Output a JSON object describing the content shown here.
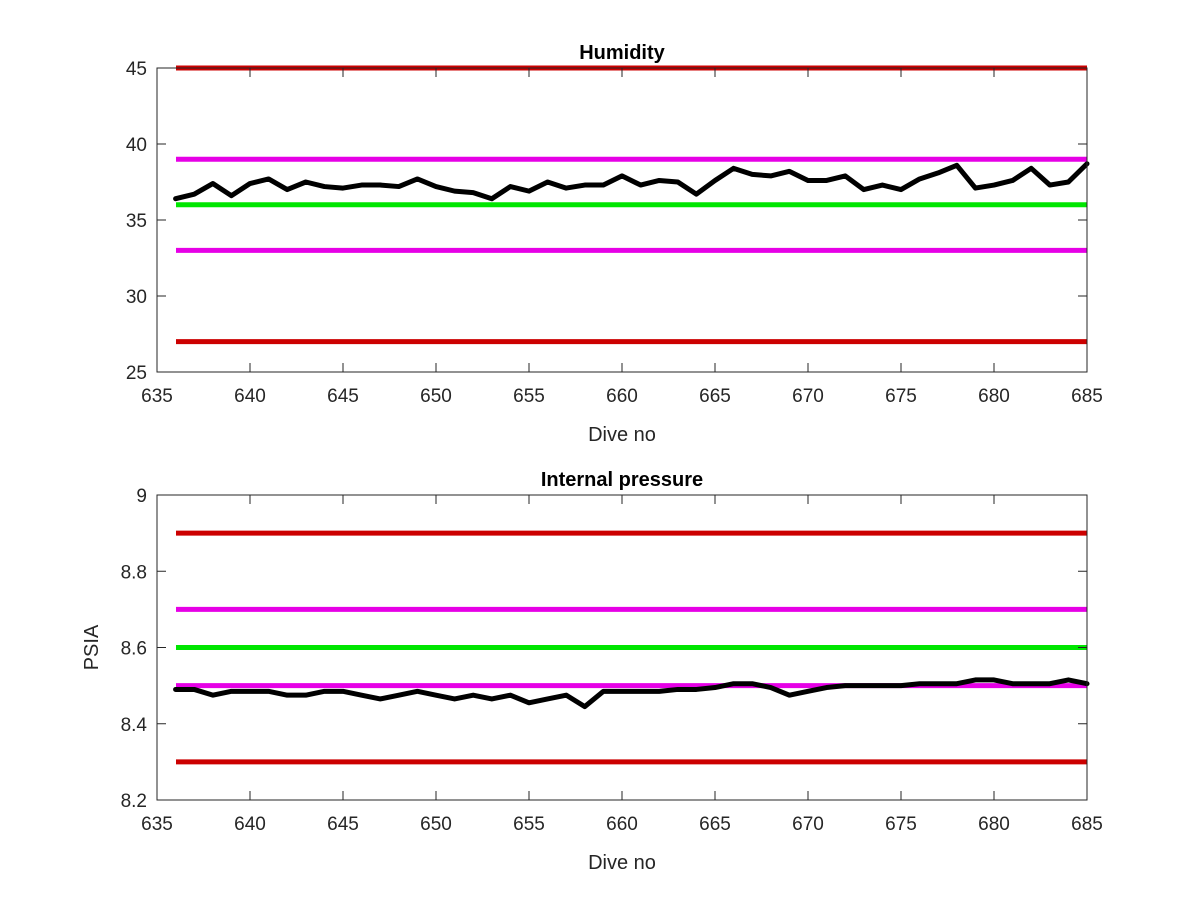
{
  "chart_data": [
    {
      "type": "line",
      "title": "Humidity",
      "xlabel": "Dive no",
      "ylabel": "",
      "xlim": [
        635,
        685
      ],
      "ylim": [
        25,
        45
      ],
      "xticks": [
        635,
        640,
        645,
        650,
        655,
        660,
        665,
        670,
        675,
        680,
        685
      ],
      "yticks": [
        25,
        30,
        35,
        40,
        45
      ],
      "grid": false,
      "reference_lines": [
        {
          "y": 45,
          "color": "#cc0000"
        },
        {
          "y": 39,
          "color": "#e600e6"
        },
        {
          "y": 36,
          "color": "#00e600"
        },
        {
          "y": 33,
          "color": "#e600e6"
        },
        {
          "y": 27,
          "color": "#cc0000"
        }
      ],
      "series": [
        {
          "color": "#000000",
          "x": [
            636,
            637,
            638,
            639,
            640,
            641,
            642,
            643,
            644,
            645,
            646,
            647,
            648,
            649,
            650,
            651,
            652,
            653,
            654,
            655,
            656,
            657,
            658,
            659,
            660,
            661,
            662,
            663,
            664,
            665,
            666,
            667,
            668,
            669,
            670,
            671,
            672,
            673,
            674,
            675,
            676,
            677,
            678,
            679,
            680,
            681,
            682,
            683,
            684,
            685
          ],
          "values": [
            36.4,
            36.7,
            37.4,
            36.6,
            37.4,
            37.7,
            37.0,
            37.5,
            37.2,
            37.1,
            37.3,
            37.3,
            37.2,
            37.7,
            37.2,
            36.9,
            36.8,
            36.4,
            37.2,
            36.9,
            37.5,
            37.1,
            37.3,
            37.3,
            37.9,
            37.3,
            37.6,
            37.5,
            36.7,
            37.6,
            38.4,
            38.0,
            37.9,
            38.2,
            37.6,
            37.6,
            37.9,
            37.0,
            37.3,
            37.0,
            37.7,
            38.1,
            38.6,
            37.1,
            37.3,
            37.6,
            38.4,
            37.3,
            37.5,
            38.7
          ]
        }
      ]
    },
    {
      "type": "line",
      "title": "Internal pressure",
      "xlabel": "Dive no",
      "ylabel": "PSIA",
      "xlim": [
        635,
        685
      ],
      "ylim": [
        8.2,
        9
      ],
      "xticks": [
        635,
        640,
        645,
        650,
        655,
        660,
        665,
        670,
        675,
        680,
        685
      ],
      "yticks": [
        8.2,
        8.4,
        8.6,
        8.8,
        9
      ],
      "grid": false,
      "reference_lines": [
        {
          "y": 8.9,
          "color": "#cc0000"
        },
        {
          "y": 8.7,
          "color": "#e600e6"
        },
        {
          "y": 8.6,
          "color": "#00e600"
        },
        {
          "y": 8.5,
          "color": "#e600e6"
        },
        {
          "y": 8.3,
          "color": "#cc0000"
        }
      ],
      "series": [
        {
          "color": "#000000",
          "x": [
            636,
            637,
            638,
            639,
            640,
            641,
            642,
            643,
            644,
            645,
            646,
            647,
            648,
            649,
            650,
            651,
            652,
            653,
            654,
            655,
            656,
            657,
            658,
            659,
            660,
            661,
            662,
            663,
            664,
            665,
            666,
            667,
            668,
            669,
            670,
            671,
            672,
            673,
            674,
            675,
            676,
            677,
            678,
            679,
            680,
            681,
            682,
            683,
            684,
            685
          ],
          "values": [
            8.49,
            8.49,
            8.475,
            8.485,
            8.485,
            8.485,
            8.475,
            8.475,
            8.485,
            8.485,
            8.475,
            8.465,
            8.475,
            8.485,
            8.475,
            8.465,
            8.475,
            8.465,
            8.475,
            8.455,
            8.465,
            8.475,
            8.445,
            8.485,
            8.485,
            8.485,
            8.485,
            8.49,
            8.49,
            8.495,
            8.505,
            8.505,
            8.495,
            8.475,
            8.485,
            8.495,
            8.5,
            8.5,
            8.5,
            8.5,
            8.505,
            8.505,
            8.505,
            8.515,
            8.515,
            8.505,
            8.505,
            8.505,
            8.515,
            8.505
          ]
        }
      ]
    }
  ]
}
